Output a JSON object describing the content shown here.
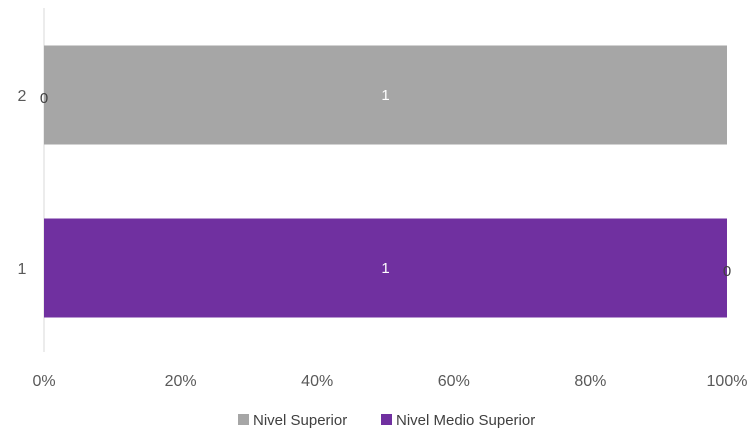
{
  "chart_data": {
    "type": "bar",
    "orientation": "horizontal",
    "stacked": "percent",
    "categories": [
      "1",
      "2"
    ],
    "series": [
      {
        "name": "Nivel Medio Superior",
        "values": [
          1,
          0
        ],
        "color": "#7030A0"
      },
      {
        "name": "Nivel Superior",
        "values": [
          0,
          1
        ],
        "color": "#A6A6A6"
      }
    ],
    "x_axis": {
      "ticks": [
        "0%",
        "20%",
        "40%",
        "60%",
        "80%",
        "100%"
      ],
      "range": [
        0,
        1
      ]
    },
    "grid": false,
    "legend_position": "bottom",
    "legend_order": [
      "Nivel Superior",
      "Nivel Medio Superior"
    ]
  }
}
